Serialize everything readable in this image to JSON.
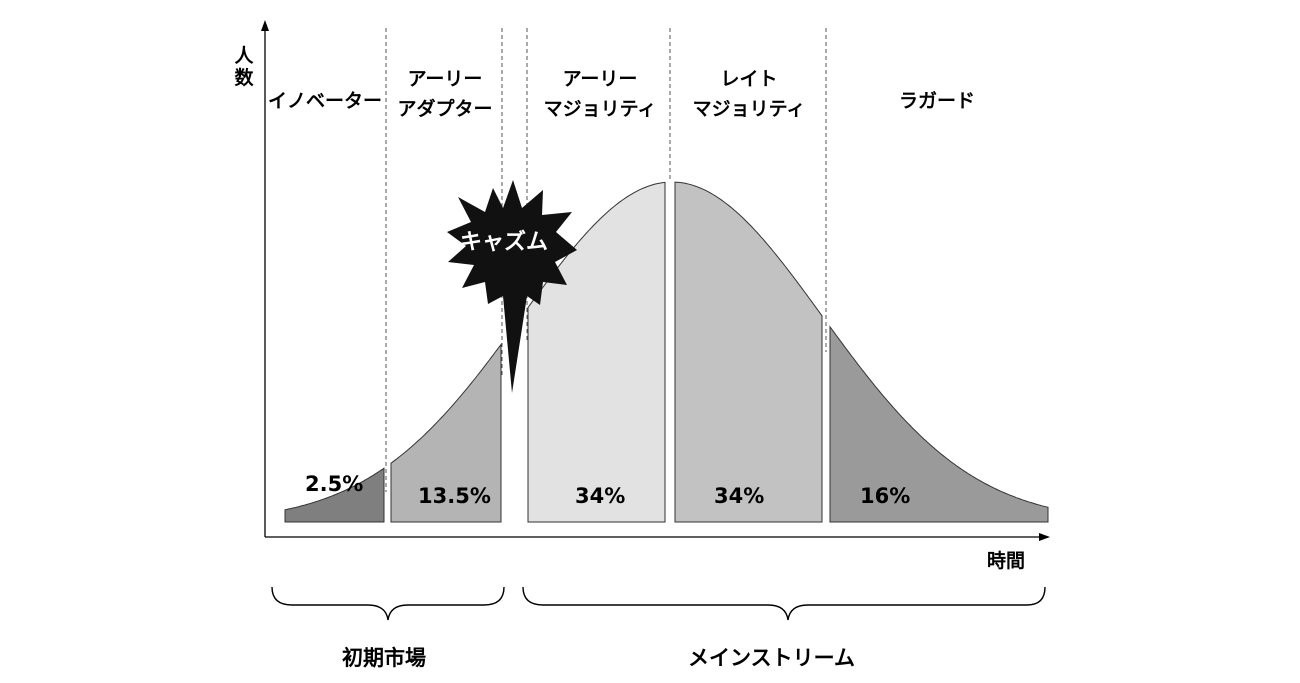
{
  "axes": {
    "y_label_line1": "人",
    "y_label_line2": "数",
    "x_label": "時間"
  },
  "segments": [
    {
      "key": "innovators",
      "line1": "イノベーター",
      "line2": "",
      "percent": "2.5%",
      "share": 2.5,
      "fill": "#7f7f7f"
    },
    {
      "key": "early_adopters",
      "line1": "アーリー",
      "line2": "アダプター",
      "percent": "13.5%",
      "share": 13.5,
      "fill": "#b4b4b4"
    },
    {
      "key": "early_majority",
      "line1": "アーリー",
      "line2": "マジョリティ",
      "percent": "34%",
      "share": 34,
      "fill": "#e2e2e2"
    },
    {
      "key": "late_majority",
      "line1": "レイト",
      "line2": "マジョリティ",
      "percent": "34%",
      "share": 34,
      "fill": "#c2c2c2"
    },
    {
      "key": "laggards",
      "line1": "ラガード",
      "line2": "",
      "percent": "16%",
      "share": 16,
      "fill": "#9a9a9a"
    }
  ],
  "chasm": {
    "label": "キャズム",
    "fill": "#111111"
  },
  "groups": {
    "early_market": "初期市場",
    "mainstream": "メインストリーム"
  }
}
